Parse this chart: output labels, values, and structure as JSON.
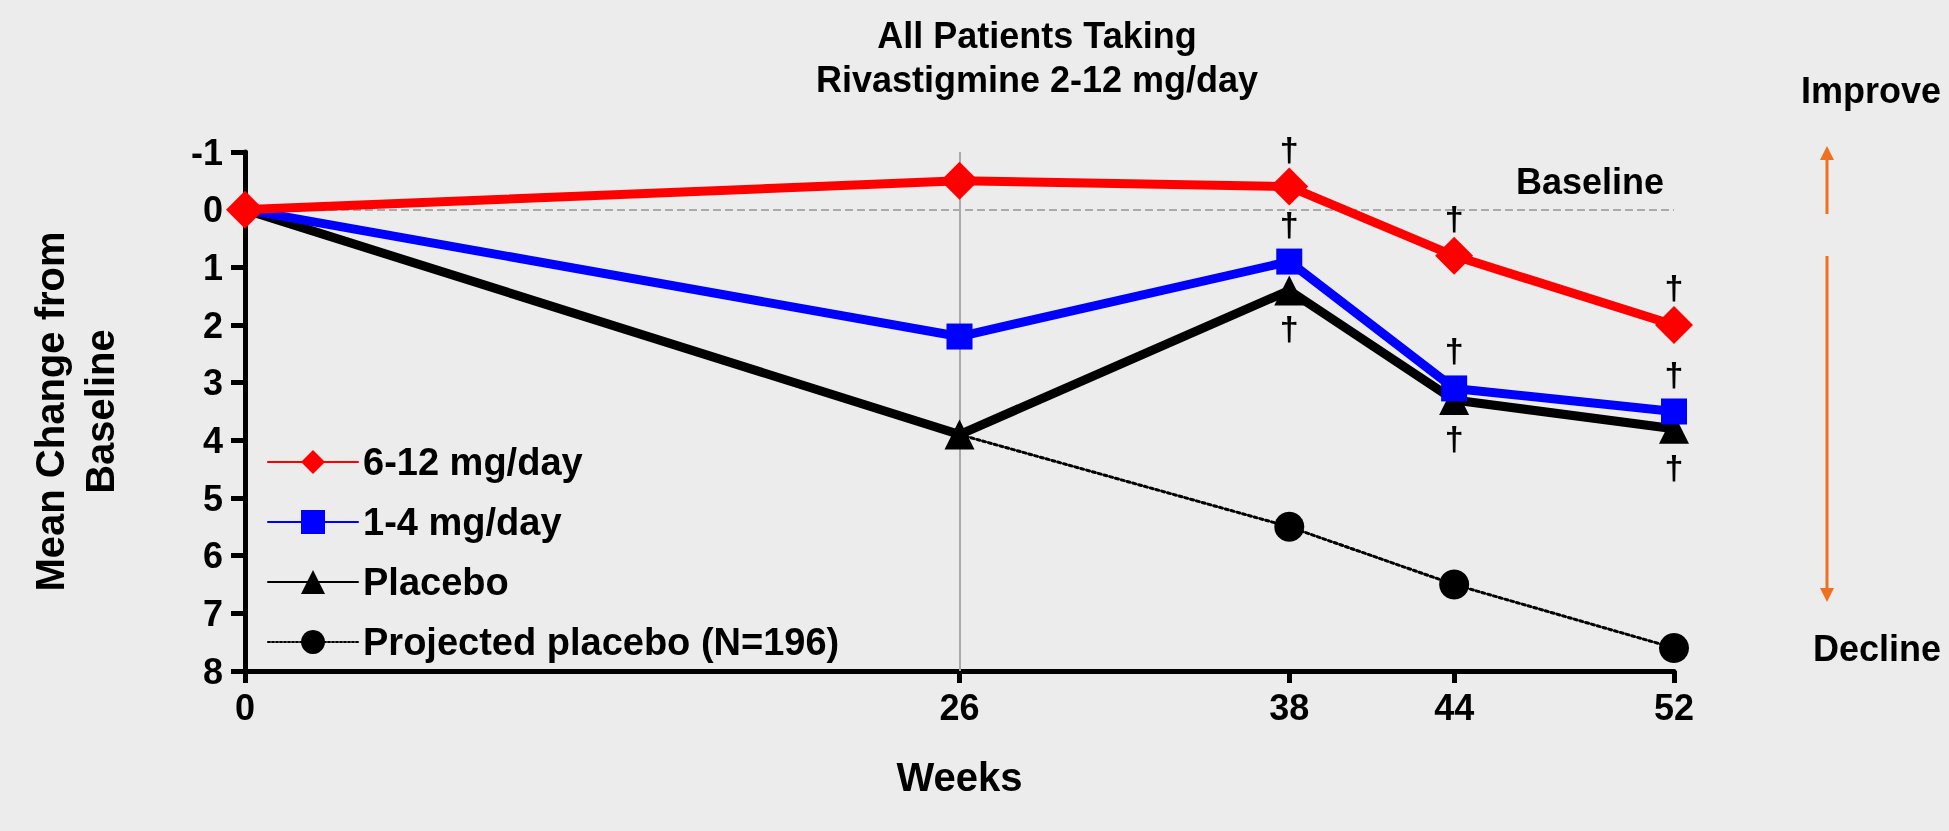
{
  "chart_data": {
    "type": "line",
    "title": "All Patients Taking\nRivastigmine 2-12 mg/day",
    "xlabel": "Weeks",
    "ylabel": "Mean Change from\nBaseline",
    "x": [
      0,
      26,
      38,
      44,
      52
    ],
    "series": [
      {
        "name": "6-12 mg/day",
        "color": "#ff0000",
        "marker": "diamond",
        "line_style": "solid",
        "values": [
          0,
          -0.5,
          -0.4,
          0.8,
          2.0
        ]
      },
      {
        "name": "1-4 mg/day",
        "color": "#0000ff",
        "marker": "square",
        "line_style": "solid",
        "values": [
          0,
          2.2,
          0.9,
          3.1,
          3.5
        ]
      },
      {
        "name": "Placebo",
        "color": "#000000",
        "marker": "triangle",
        "line_style": "solid",
        "values": [
          0,
          3.9,
          1.4,
          3.3,
          3.8
        ]
      },
      {
        "name": "Projected placebo (N=196)",
        "color": "#000000",
        "marker": "circle",
        "line_style": "dotted",
        "x": [
          26,
          38,
          44,
          52
        ],
        "values": [
          3.9,
          5.5,
          6.5,
          7.6
        ]
      }
    ],
    "xlim": [
      0,
      52
    ],
    "xticks": [
      0,
      26,
      38,
      44,
      52
    ],
    "ylim": [
      8,
      -1
    ],
    "yticks": [
      -1,
      0,
      1,
      2,
      3,
      4,
      5,
      6,
      7,
      8
    ],
    "grid": false,
    "legend": "bottom left",
    "ref_lines": [
      {
        "axis": "y",
        "value": 0,
        "label": "Baseline",
        "color": "#aaaaaa",
        "line_style": "dashed"
      },
      {
        "axis": "x",
        "value": 26,
        "label": null,
        "color": "#aaaaaa",
        "line_style": "solid"
      }
    ],
    "annotations": [
      "Improve",
      "Decline",
      {
        "text": "†",
        "x": 38,
        "y": -0.4
      },
      {
        "text": "†",
        "x": 38,
        "y": 0.9
      },
      {
        "text": "†",
        "x": 38,
        "y": 1.4
      },
      {
        "text": "†",
        "x": 44,
        "y": 0.8
      },
      {
        "text": "†",
        "x": 44,
        "y": 3.1
      },
      {
        "text": "†",
        "x": 44,
        "y": 3.3
      },
      {
        "text": "†",
        "x": 52,
        "y": 2.0
      },
      {
        "text": "†",
        "x": 52,
        "y": 3.5
      },
      {
        "text": "†",
        "x": 52,
        "y": 3.8
      }
    ]
  }
}
